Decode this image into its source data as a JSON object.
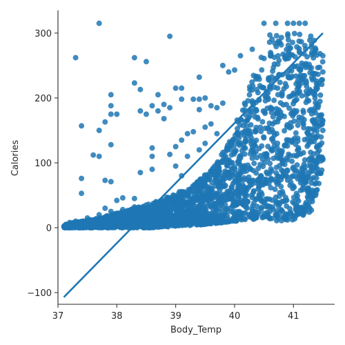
{
  "chart_data": {
    "type": "scatter",
    "title": "",
    "xlabel": "Body_Temp",
    "ylabel": "Calories",
    "xlim": [
      37.0,
      41.7
    ],
    "ylim": [
      -118,
      335
    ],
    "xticks": [
      37,
      38,
      39,
      40,
      41
    ],
    "yticks": [
      -100,
      0,
      100,
      200,
      300
    ],
    "grid": false,
    "legend": "none",
    "point_color": "#1f77b4",
    "line_color": "#1f77b4",
    "regression_line": {
      "x": [
        37.1,
        41.5
      ],
      "y": [
        -107,
        300
      ]
    },
    "dense_region": {
      "x_range": [
        37.1,
        41.5
      ],
      "y_lower_edge": [
        [
          37.1,
          0
        ],
        [
          38.6,
          0
        ],
        [
          39.5,
          5
        ],
        [
          40.0,
          10
        ],
        [
          40.5,
          15
        ],
        [
          40.7,
          8
        ],
        [
          41.0,
          12
        ],
        [
          41.3,
          25
        ],
        [
          41.5,
          90
        ]
      ],
      "y_upper_edge": [
        [
          37.1,
          5
        ],
        [
          37.7,
          15
        ],
        [
          38.3,
          30
        ],
        [
          38.8,
          45
        ],
        [
          39.3,
          65
        ],
        [
          39.6,
          90
        ],
        [
          39.9,
          130
        ],
        [
          40.1,
          180
        ],
        [
          40.3,
          230
        ],
        [
          40.5,
          275
        ],
        [
          40.7,
          300
        ],
        [
          41.3,
          300
        ],
        [
          41.5,
          270
        ]
      ]
    },
    "points": [
      [
        37.3,
        262
      ],
      [
        37.7,
        315
      ],
      [
        37.4,
        157
      ],
      [
        37.7,
        150
      ],
      [
        37.8,
        163
      ],
      [
        37.6,
        112
      ],
      [
        37.7,
        110
      ],
      [
        37.4,
        76
      ],
      [
        37.8,
        73
      ],
      [
        37.4,
        53
      ],
      [
        37.9,
        205
      ],
      [
        37.9,
        188
      ],
      [
        38.0,
        175
      ],
      [
        37.9,
        175
      ],
      [
        37.9,
        128
      ],
      [
        37.9,
        71
      ],
      [
        38.3,
        262
      ],
      [
        38.5,
        256
      ],
      [
        38.9,
        295
      ],
      [
        38.3,
        223
      ],
      [
        38.4,
        213
      ],
      [
        38.7,
        205
      ],
      [
        38.8,
        190
      ],
      [
        39.0,
        215
      ],
      [
        38.6,
        188
      ],
      [
        38.7,
        180
      ],
      [
        38.4,
        180
      ],
      [
        38.5,
        175
      ],
      [
        38.8,
        168
      ],
      [
        38.6,
        123
      ],
      [
        38.6,
        110
      ],
      [
        38.4,
        85
      ],
      [
        38.6,
        90
      ],
      [
        38.1,
        46
      ],
      [
        38.3,
        45
      ],
      [
        38.0,
        42
      ],
      [
        38.9,
        185
      ],
      [
        39.1,
        198
      ],
      [
        39.1,
        215
      ],
      [
        39.3,
        198
      ],
      [
        39.4,
        198
      ],
      [
        39.5,
        200
      ],
      [
        39.4,
        232
      ],
      [
        39.4,
        182
      ],
      [
        39.6,
        188
      ],
      [
        39.7,
        185
      ],
      [
        39.8,
        192
      ],
      [
        39.8,
        250
      ],
      [
        39.9,
        240
      ],
      [
        40.0,
        243
      ],
      [
        39.2,
        145
      ],
      [
        39.1,
        135
      ],
      [
        39.0,
        125
      ],
      [
        38.9,
        113
      ],
      [
        39.3,
        148
      ],
      [
        39.5,
        155
      ],
      [
        39.6,
        160
      ],
      [
        39.2,
        110
      ],
      [
        39.0,
        95
      ],
      [
        39.1,
        80
      ],
      [
        39.4,
        120
      ],
      [
        39.5,
        130
      ],
      [
        39.7,
        145
      ],
      [
        40.5,
        315
      ],
      [
        40.7,
        315
      ],
      [
        40.9,
        315
      ],
      [
        41.1,
        315
      ],
      [
        41.2,
        315
      ],
      [
        41.0,
        315
      ],
      [
        40.6,
        297
      ],
      [
        40.3,
        275
      ],
      [
        40.1,
        265
      ],
      [
        41.4,
        190
      ],
      [
        41.5,
        165
      ],
      [
        41.5,
        240
      ],
      [
        41.5,
        265
      ],
      [
        41.5,
        150
      ],
      [
        41.4,
        125
      ],
      [
        41.4,
        100
      ],
      [
        41.3,
        75
      ],
      [
        41.3,
        55
      ],
      [
        41.2,
        35
      ],
      [
        41.1,
        22
      ],
      [
        40.9,
        12
      ],
      [
        40.7,
        18
      ],
      [
        40.5,
        22
      ],
      [
        40.3,
        25
      ],
      [
        40.1,
        20
      ],
      [
        37.8,
        30
      ],
      [
        37.9,
        25
      ],
      [
        38.0,
        22
      ],
      [
        38.1,
        28
      ],
      [
        38.2,
        25
      ],
      [
        38.3,
        32
      ],
      [
        38.5,
        35
      ],
      [
        37.7,
        20
      ],
      [
        37.5,
        15
      ],
      [
        37.3,
        10
      ],
      [
        37.2,
        8
      ]
    ]
  }
}
